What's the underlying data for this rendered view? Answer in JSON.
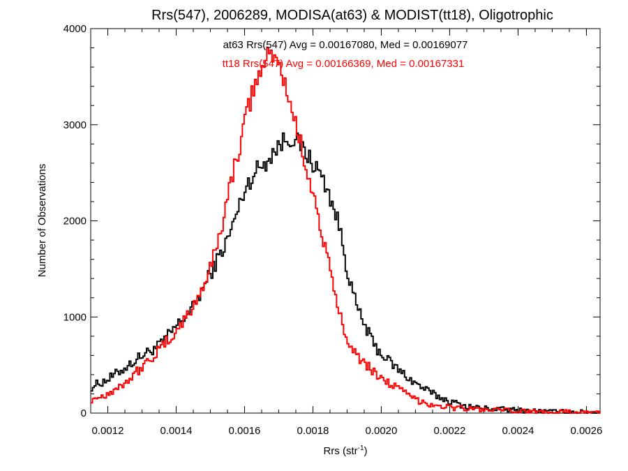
{
  "chart_data": {
    "type": "line",
    "style": "step-histogram",
    "title": "Rrs(547), 2006289, MODISA(at63) & MODIST(tt18), Oligotrophic",
    "xlabel_base": "Rrs (str",
    "xlabel_sup": "-1",
    "xlabel_close": ")",
    "ylabel": "Number of Observations",
    "xlim": [
      0.00115,
      0.00264
    ],
    "ylim": [
      0,
      4000
    ],
    "xticks": [
      0.0012,
      0.0014,
      0.0016,
      0.0018,
      0.002,
      0.0022,
      0.0024,
      0.0026
    ],
    "xtick_labels": [
      "0.0012",
      "0.0014",
      "0.0016",
      "0.0018",
      "0.0020",
      "0.0022",
      "0.0024",
      "0.0026"
    ],
    "yticks": [
      0,
      1000,
      2000,
      3000,
      4000
    ],
    "ytick_labels": [
      "0",
      "1000",
      "2000",
      "3000",
      "4000"
    ],
    "grid": false,
    "annotations": [
      {
        "text": "at63 Rrs(547) Avg = 0.00167080, Med = 0.00169077",
        "color": "#000000"
      },
      {
        "text": "tt18 Rrs(547) Avg = 0.00166369, Med = 0.00167331",
        "color": "#ff0000"
      }
    ],
    "series": [
      {
        "color": "#000000",
        "x": [
          0.00115,
          0.0012,
          0.00125,
          0.0013,
          0.00135,
          0.0014,
          0.00145,
          0.0015,
          0.00155,
          0.00158,
          0.0016,
          0.00162,
          0.00164,
          0.00166,
          0.00168,
          0.0017,
          0.00172,
          0.00174,
          0.00176,
          0.00178,
          0.0018,
          0.00182,
          0.00184,
          0.00186,
          0.00188,
          0.0019,
          0.00192,
          0.00194,
          0.00196,
          0.00198,
          0.002,
          0.00205,
          0.0021,
          0.00215,
          0.0022,
          0.00225,
          0.0023,
          0.0024,
          0.0025,
          0.00264
        ],
        "y": [
          270,
          350,
          470,
          600,
          700,
          900,
          1100,
          1450,
          1800,
          2100,
          2320,
          2450,
          2550,
          2600,
          2700,
          2780,
          2850,
          2870,
          2800,
          2700,
          2600,
          2500,
          2350,
          2150,
          1900,
          1500,
          1200,
          1000,
          850,
          700,
          620,
          450,
          310,
          200,
          120,
          70,
          50,
          30,
          15,
          8
        ]
      },
      {
        "color": "#ff0000",
        "x": [
          0.00115,
          0.0012,
          0.00125,
          0.0013,
          0.00135,
          0.0014,
          0.00145,
          0.0015,
          0.00153,
          0.00156,
          0.00158,
          0.0016,
          0.00162,
          0.00164,
          0.00166,
          0.00168,
          0.0017,
          0.00172,
          0.00174,
          0.00176,
          0.00178,
          0.0018,
          0.00182,
          0.00184,
          0.00186,
          0.00188,
          0.0019,
          0.00192,
          0.00195,
          0.00198,
          0.002,
          0.00205,
          0.0021,
          0.00215,
          0.0022,
          0.0023,
          0.0024,
          0.0025,
          0.00264
        ],
        "y": [
          140,
          200,
          320,
          480,
          650,
          850,
          1100,
          1500,
          1900,
          2400,
          2700,
          3000,
          3300,
          3500,
          3650,
          3760,
          3620,
          3400,
          3150,
          2850,
          2600,
          2300,
          1950,
          1650,
          1300,
          1000,
          800,
          650,
          520,
          420,
          370,
          250,
          140,
          90,
          60,
          35,
          20,
          12,
          6
        ]
      }
    ]
  }
}
